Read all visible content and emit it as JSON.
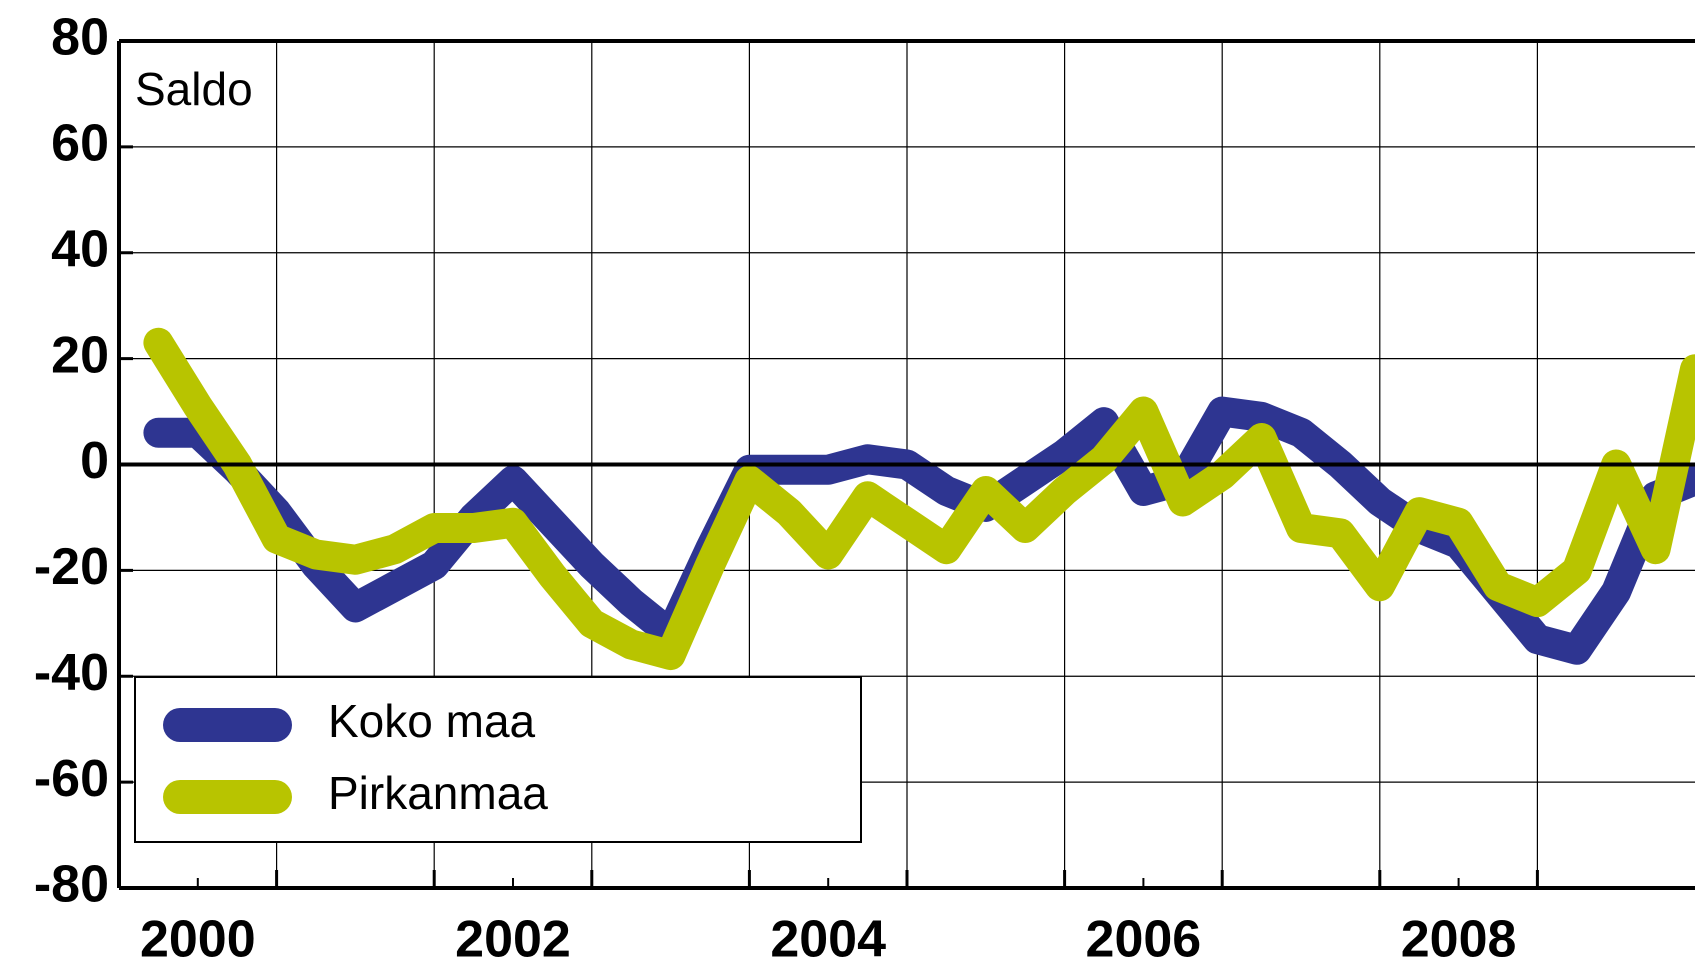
{
  "chart_data": {
    "type": "line",
    "annotation": "Saldo",
    "x": [
      2000.25,
      2000.5,
      2000.75,
      2001,
      2001.25,
      2001.5,
      2001.75,
      2002,
      2002.25,
      2002.5,
      2002.75,
      2003,
      2003.25,
      2003.5,
      2003.75,
      2004,
      2004.25,
      2004.5,
      2004.75,
      2005,
      2005.25,
      2005.5,
      2005.75,
      2006,
      2006.25,
      2006.5,
      2006.75,
      2007,
      2007.25,
      2007.5,
      2007.75,
      2008,
      2008.25,
      2008.5,
      2008.75,
      2009,
      2009.25,
      2009.5,
      2009.75,
      2010
    ],
    "series": [
      {
        "name": "Koko maa",
        "color": "#2e3591",
        "values": [
          6,
          6,
          -1,
          -9,
          -19,
          -27,
          -23,
          -19,
          -10,
          -3,
          -11,
          -19,
          -26,
          -32,
          -16,
          -1,
          -1,
          -1,
          1,
          0,
          -5,
          -8,
          -3,
          2,
          8,
          -5,
          -3,
          10,
          9,
          6,
          0,
          -7,
          -12,
          -15,
          -24,
          -33,
          -35,
          -24,
          -6,
          -3
        ]
      },
      {
        "name": "Pirkanmaa",
        "color": "#b8c400",
        "values": [
          23,
          11,
          0,
          -14,
          -17,
          -18,
          -16,
          -12,
          -12,
          -11,
          -21,
          -30,
          -34,
          -36,
          -19,
          -3,
          -9,
          -17,
          -6,
          -11,
          -16,
          -5,
          -12,
          -5,
          1,
          10,
          -7,
          -2,
          5,
          -12,
          -13,
          -23,
          -9,
          -11,
          -23,
          -26,
          -20,
          0,
          -16,
          18
        ]
      }
    ],
    "xlim": [
      2000,
      2010
    ],
    "xticks": [
      2001,
      2002,
      2003,
      2004,
      2005,
      2006,
      2007,
      2008,
      2009
    ],
    "xticklabels": [
      {
        "value": 2000.5,
        "label": "2000"
      },
      {
        "value": 2002.5,
        "label": "2002"
      },
      {
        "value": 2004.5,
        "label": "2004"
      },
      {
        "value": 2006.5,
        "label": "2006"
      },
      {
        "value": 2008.5,
        "label": "2008"
      }
    ],
    "ylim": [
      -80,
      80
    ],
    "yticks": [
      80,
      60,
      40,
      20,
      0,
      -20,
      -40,
      -60,
      -80
    ],
    "grid": true,
    "legend": "lower left"
  }
}
